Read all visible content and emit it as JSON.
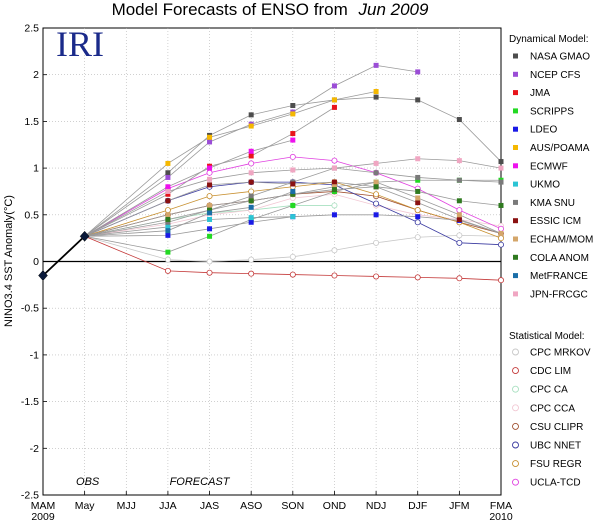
{
  "chart_data": {
    "type": "line",
    "title": "Model Forecasts of ENSO from",
    "title_italic": "Jun 2009",
    "logo": "IRI",
    "ylabel": "NINO3.4 SST Anomaly(°C)",
    "ylim": [
      -2.5,
      2.5
    ],
    "yticks": [
      -2.5,
      -2,
      -1.5,
      -1,
      -0.5,
      0,
      0.5,
      1,
      1.5,
      2,
      2.5
    ],
    "categories": [
      "MAM",
      "May",
      "MJJ",
      "JJA",
      "JAS",
      "ASO",
      "SON",
      "OND",
      "NDJ",
      "DJF",
      "JFM",
      "FMA"
    ],
    "year_labels": [
      {
        "text": "2009",
        "at": "MAM"
      },
      {
        "text": "2010",
        "at": "FMA"
      }
    ],
    "annotations": [
      "OBS",
      "FORECAST"
    ],
    "grid": true,
    "zero_line": true,
    "legend_position": "right",
    "dynamical_heading": "Dynamical Model:",
    "statistical_heading": "Statistical Model:",
    "observed": {
      "x": [
        "MAM",
        "May"
      ],
      "values": [
        -0.15,
        0.27
      ],
      "color": "#0a1a3a"
    },
    "dynamical": [
      {
        "name": "NASA GMAO",
        "color": "#4d4d4d",
        "values": [
          0.95,
          1.35,
          1.57,
          1.67,
          1.73,
          1.76,
          1.73,
          1.52,
          1.07
        ]
      },
      {
        "name": "NCEP CFS",
        "color": "#9b4dd6",
        "values": [
          0.9,
          1.28,
          1.47,
          1.6,
          1.88,
          2.1,
          2.03,
          null,
          null
        ]
      },
      {
        "name": "JMA",
        "color": "#e8141b",
        "values": [
          0.72,
          1.02,
          1.13,
          1.37,
          1.65,
          null,
          null,
          null,
          null
        ]
      },
      {
        "name": "SCRIPPS",
        "color": "#23d923",
        "values": [
          0.1,
          0.27,
          0.45,
          0.6,
          0.75,
          0.85,
          0.87,
          0.87,
          0.87
        ]
      },
      {
        "name": "LDEO",
        "color": "#1a1ae6",
        "values": [
          0.28,
          0.35,
          0.42,
          0.48,
          0.5,
          0.5,
          0.48,
          0.44,
          0.3
        ]
      },
      {
        "name": "AUS/POAMA",
        "color": "#f5b800",
        "values": [
          1.05,
          1.33,
          1.45,
          1.58,
          1.73,
          1.82,
          null,
          null,
          null
        ]
      },
      {
        "name": "ECMWF",
        "color": "#ee11ee",
        "values": [
          0.8,
          1.0,
          1.18,
          1.3,
          null,
          null,
          null,
          null,
          null
        ]
      },
      {
        "name": "UKMO",
        "color": "#2bc4d4",
        "values": [
          0.37,
          0.45,
          0.47,
          0.48,
          null,
          null,
          null,
          null,
          null
        ]
      },
      {
        "name": "KMA SNU",
        "color": "#7a7a7a",
        "values": [
          0.42,
          0.55,
          0.7,
          0.85,
          1.0,
          0.95,
          0.9,
          0.87,
          0.85
        ]
      },
      {
        "name": "ESSIC ICM",
        "color": "#8a1111",
        "values": [
          0.65,
          0.82,
          0.85,
          0.83,
          0.85,
          0.8,
          0.63,
          0.45,
          0.3
        ]
      },
      {
        "name": "ECHAM/MOM",
        "color": "#d4a66a",
        "values": [
          0.5,
          0.6,
          0.65,
          0.72,
          0.8,
          0.85,
          0.68,
          0.5,
          0.3
        ]
      },
      {
        "name": "COLA ANOM",
        "color": "#2f7a1f",
        "values": [
          0.45,
          0.55,
          0.65,
          0.72,
          0.77,
          0.8,
          0.75,
          0.65,
          0.6
        ]
      },
      {
        "name": "MetFRANCE",
        "color": "#1a6ea8",
        "values": [
          0.33,
          0.52,
          0.58,
          0.75,
          null,
          null,
          null,
          null,
          null
        ]
      },
      {
        "name": "JPN-FRCGC",
        "color": "#f0a6c2",
        "values": [
          0.75,
          0.88,
          0.95,
          0.98,
          1.0,
          1.05,
          1.1,
          1.08,
          1.0
        ]
      }
    ],
    "statistical": [
      {
        "name": "CPC MRKOV",
        "color": "#c8c8c8",
        "values": [
          0.02,
          0.0,
          0.02,
          0.05,
          0.12,
          0.2,
          0.26,
          0.28,
          0.27
        ]
      },
      {
        "name": "CDC LIM",
        "color": "#c43a3a",
        "values": [
          -0.1,
          -0.12,
          -0.13,
          -0.14,
          -0.15,
          -0.16,
          -0.17,
          -0.18,
          -0.2
        ]
      },
      {
        "name": "CPC CA",
        "color": "#a8e0c0",
        "values": [
          0.45,
          0.52,
          0.55,
          0.6,
          0.6,
          null,
          null,
          null,
          null
        ]
      },
      {
        "name": "CPC CCA",
        "color": "#f2c8d4",
        "values": [
          0.4,
          0.5,
          0.55,
          0.68,
          0.72,
          0.6,
          0.5,
          0.45,
          0.38
        ]
      },
      {
        "name": "CSU CLIPR",
        "color": "#a05030",
        "values": [
          0.5,
          0.6,
          0.65,
          0.72,
          0.75,
          0.7,
          0.55,
          0.42,
          0.3
        ]
      },
      {
        "name": "UBC NNET",
        "color": "#3a3aa0",
        "values": [
          0.65,
          0.8,
          0.85,
          0.85,
          0.82,
          0.62,
          0.42,
          0.2,
          0.18
        ]
      },
      {
        "name": "FSU REGR",
        "color": "#c89030",
        "values": [
          0.55,
          0.7,
          0.75,
          0.8,
          0.85,
          0.72,
          0.55,
          0.42,
          0.25
        ]
      },
      {
        "name": "UCLA-TCD",
        "color": "#e040e0",
        "values": [
          0.78,
          0.95,
          1.05,
          1.12,
          1.08,
          0.95,
          0.78,
          0.55,
          0.35
        ]
      }
    ]
  }
}
